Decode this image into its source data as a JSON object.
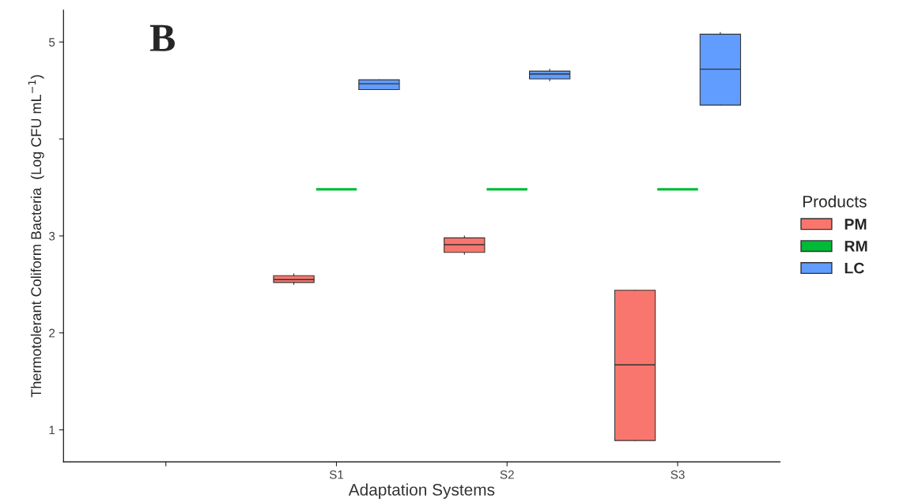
{
  "chart_data": {
    "type": "box",
    "categories": [
      null,
      "S1",
      "S2",
      "S3"
    ],
    "xlabel": "Adaptation Systems",
    "ylabel": "Thermotolerant Coliform Bacteria  (Log CFU mL$^{−1}$)",
    "legend_title": "Products",
    "annotations": [
      "B"
    ],
    "ylim": [
      0.67,
      5.33
    ],
    "yticks": [
      1,
      2,
      3,
      {
        "value": 4,
        "label": null
      },
      5
    ],
    "grid": false,
    "legend": "right",
    "series": [
      {
        "name": "PM",
        "color": "#f8766d",
        "boxes": [
          null,
          {
            "low": 2.5,
            "q1": 2.52,
            "median": 2.55,
            "q3": 2.59,
            "high": 2.61
          },
          {
            "low": 2.81,
            "q1": 2.83,
            "median": 2.91,
            "q3": 2.98,
            "high": 3.0
          },
          {
            "low": 0.89,
            "q1": 0.89,
            "median": 1.67,
            "q3": 2.44,
            "high": 2.44
          }
        ]
      },
      {
        "name": "RM",
        "color": "#00ba38",
        "boxes": [
          null,
          {
            "low": 3.48,
            "q1": 3.48,
            "median": 3.48,
            "q3": 3.48,
            "high": 3.48
          },
          {
            "low": 3.48,
            "q1": 3.48,
            "median": 3.48,
            "q3": 3.48,
            "high": 3.48
          },
          {
            "low": 3.48,
            "q1": 3.48,
            "median": 3.48,
            "q3": 3.48,
            "high": 3.48
          }
        ]
      },
      {
        "name": "LC",
        "color": "#619cff",
        "boxes": [
          null,
          {
            "low": 4.51,
            "q1": 4.51,
            "median": 4.57,
            "q3": 4.61,
            "high": 4.61
          },
          {
            "low": 4.6,
            "q1": 4.62,
            "median": 4.67,
            "q3": 4.7,
            "high": 4.72
          },
          {
            "low": 4.35,
            "q1": 4.35,
            "median": 4.72,
            "q3": 5.08,
            "high": 5.1
          }
        ]
      }
    ]
  }
}
